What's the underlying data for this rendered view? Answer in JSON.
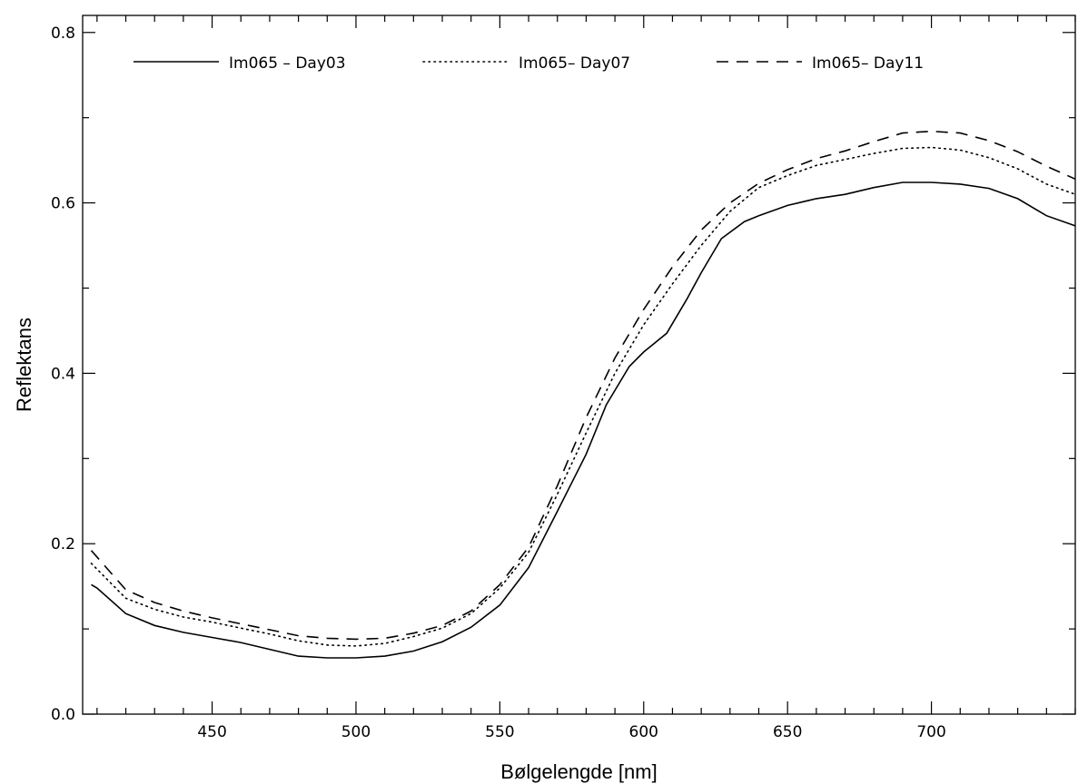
{
  "chart_data": {
    "type": "line",
    "title": "",
    "xlabel": "Bølgelengde [nm]",
    "ylabel": "Reflektans",
    "xlim": [
      405,
      750
    ],
    "ylim": [
      0.0,
      0.82
    ],
    "x_ticks": [
      450,
      500,
      550,
      600,
      650,
      700
    ],
    "x_tick_labels": [
      "450",
      "500",
      "550",
      "600",
      "650",
      "700"
    ],
    "x_minor_step": 10,
    "y_ticks": [
      0.0,
      0.2,
      0.4,
      0.6,
      0.8
    ],
    "y_tick_labels": [
      "0.0",
      "0.2",
      "0.4",
      "0.6",
      "0.8"
    ],
    "y_minor_step": 0.1,
    "grid": false,
    "legend_position": "top",
    "series": [
      {
        "name": "Im065 – Day03",
        "style": "solid",
        "color": "#000000",
        "x": [
          408,
          410,
          420,
          430,
          440,
          450,
          460,
          470,
          480,
          490,
          500,
          510,
          520,
          530,
          540,
          550,
          560,
          570,
          580,
          587,
          595,
          600,
          608,
          615,
          620,
          627,
          635,
          640,
          650,
          660,
          670,
          680,
          690,
          700,
          710,
          720,
          730,
          740,
          750
        ],
        "y": [
          0.152,
          0.148,
          0.118,
          0.104,
          0.096,
          0.09,
          0.084,
          0.076,
          0.068,
          0.066,
          0.066,
          0.068,
          0.074,
          0.085,
          0.102,
          0.128,
          0.172,
          0.238,
          0.305,
          0.363,
          0.408,
          0.425,
          0.447,
          0.487,
          0.518,
          0.558,
          0.578,
          0.585,
          0.597,
          0.605,
          0.61,
          0.618,
          0.624,
          0.624,
          0.622,
          0.617,
          0.605,
          0.585,
          0.573
        ]
      },
      {
        "name": "Im065– Day07",
        "style": "dotted",
        "color": "#000000",
        "x": [
          408,
          420,
          430,
          440,
          450,
          460,
          470,
          480,
          490,
          500,
          510,
          520,
          530,
          540,
          550,
          560,
          570,
          580,
          590,
          600,
          610,
          620,
          630,
          640,
          650,
          660,
          670,
          680,
          690,
          700,
          710,
          720,
          730,
          740,
          750
        ],
        "y": [
          0.177,
          0.136,
          0.123,
          0.114,
          0.108,
          0.101,
          0.094,
          0.086,
          0.081,
          0.08,
          0.083,
          0.091,
          0.101,
          0.118,
          0.148,
          0.19,
          0.258,
          0.33,
          0.4,
          0.457,
          0.505,
          0.55,
          0.59,
          0.618,
          0.632,
          0.644,
          0.651,
          0.658,
          0.664,
          0.665,
          0.662,
          0.653,
          0.64,
          0.622,
          0.61
        ]
      },
      {
        "name": "Im065– Day11",
        "style": "dashed",
        "color": "#000000",
        "x": [
          408,
          420,
          430,
          440,
          450,
          460,
          470,
          480,
          490,
          500,
          510,
          520,
          530,
          540,
          550,
          560,
          570,
          580,
          590,
          600,
          610,
          620,
          630,
          640,
          650,
          660,
          670,
          680,
          690,
          700,
          710,
          720,
          730,
          740,
          750
        ],
        "y": [
          0.192,
          0.146,
          0.131,
          0.121,
          0.113,
          0.106,
          0.099,
          0.092,
          0.089,
          0.088,
          0.089,
          0.095,
          0.104,
          0.121,
          0.152,
          0.196,
          0.268,
          0.348,
          0.418,
          0.475,
          0.525,
          0.568,
          0.6,
          0.623,
          0.639,
          0.652,
          0.661,
          0.672,
          0.682,
          0.684,
          0.682,
          0.673,
          0.66,
          0.643,
          0.628
        ]
      }
    ]
  }
}
